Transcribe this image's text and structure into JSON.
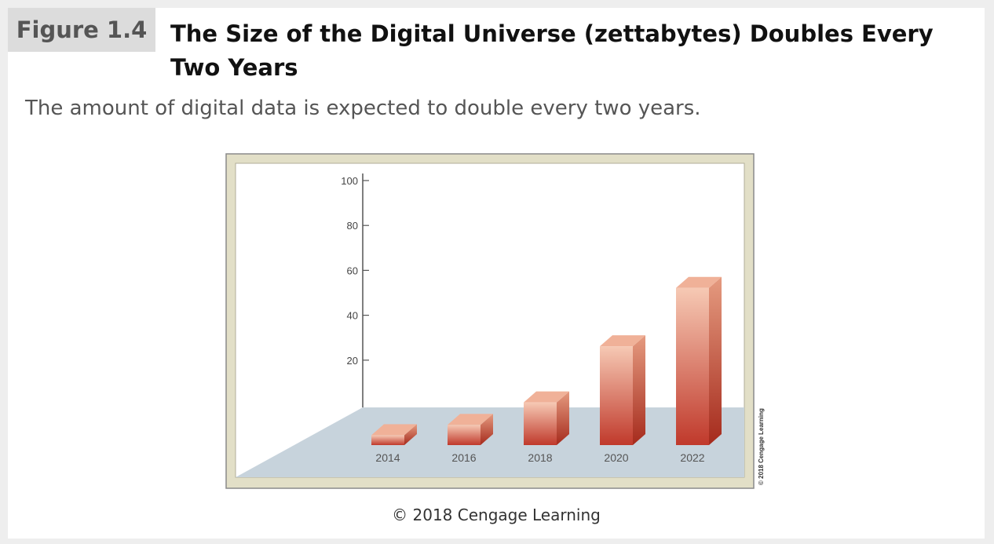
{
  "figure": {
    "label": "Figure 1.4",
    "title": "The Size of the Digital Universe (zettabytes) Doubles Every Two Years",
    "caption": "The amount of digital data is expected to double every two years.",
    "credit": "© 2018 Cengage Learning",
    "side_credit": "© 2018 Cengage Learning"
  },
  "chart_data": {
    "type": "bar",
    "title": "",
    "xlabel": "",
    "ylabel": "",
    "categories": [
      "2014",
      "2016",
      "2018",
      "2020",
      "2022"
    ],
    "values": [
      4.4,
      9,
      19,
      44,
      70
    ],
    "ylim": [
      0,
      100
    ],
    "yticks": [
      20,
      40,
      60,
      80,
      100
    ],
    "grid": false,
    "style": "3d",
    "colors": {
      "bar_light": "#f6c9b4",
      "bar_dark": "#c0392b",
      "floor": "#c7d3dc",
      "frame": "#d8d4ba"
    }
  }
}
